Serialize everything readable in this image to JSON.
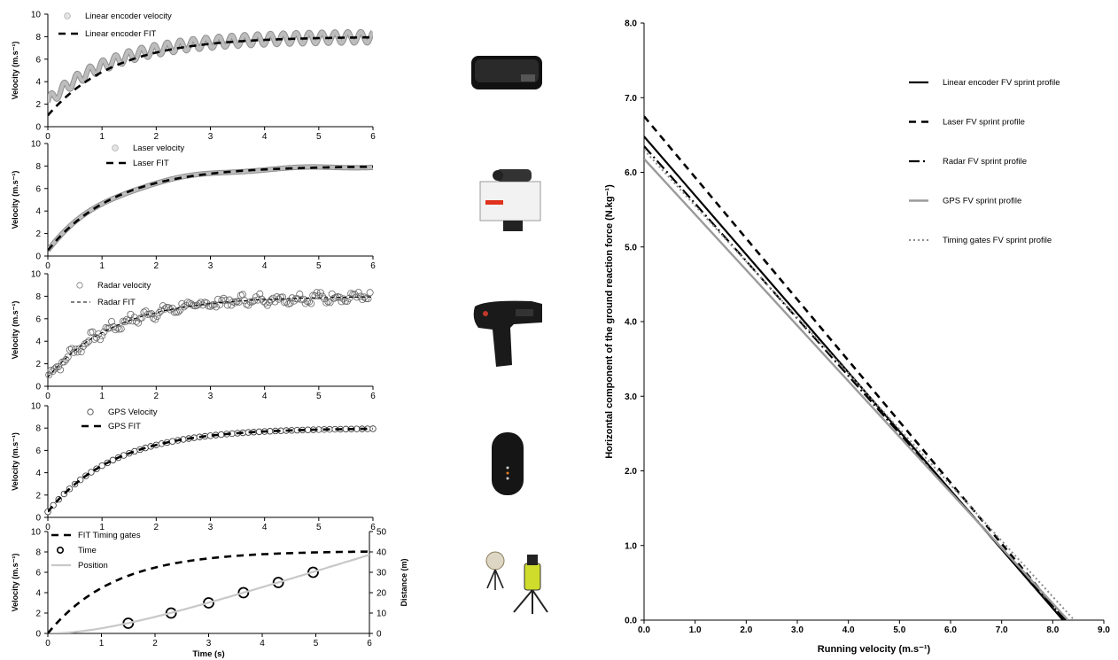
{
  "figure": {
    "width": 1262,
    "height": 745
  },
  "chart_data": [
    {
      "id": "encoder",
      "type": "line",
      "ylabel": "Velocity (m.s⁻¹)",
      "xlabel": "",
      "xlim": [
        0,
        6
      ],
      "ylim": [
        0,
        10
      ],
      "xticks": [
        0,
        1,
        2,
        3,
        4,
        5,
        6
      ],
      "yticks": [
        0,
        2,
        4,
        6,
        8,
        10
      ],
      "fit": {
        "vmax": 8.0,
        "tau": 1.25,
        "v0": 1.0
      },
      "series": [
        {
          "name": "Linear encoder velocity",
          "kind": "raw-oscillating",
          "style": "grey-band",
          "amplitude": 0.5,
          "cycles_per_s": 4.2
        },
        {
          "name": "Linear encoder FIT",
          "kind": "fit",
          "style": "dash-black"
        }
      ],
      "device_icon": "linear-encoder-device-icon"
    },
    {
      "id": "laser",
      "type": "line",
      "ylabel": "Velocity (m.s⁻¹)",
      "xlabel": "",
      "xlim": [
        0,
        6
      ],
      "ylim": [
        0,
        10
      ],
      "xticks": [
        0,
        1,
        2,
        3,
        4,
        5,
        6
      ],
      "yticks": [
        0,
        2,
        4,
        6,
        8,
        10
      ],
      "fit": {
        "vmax": 8.0,
        "tau": 1.25,
        "v0": 0.5
      },
      "series": [
        {
          "name": "Laser velocity",
          "kind": "raw-smooth",
          "style": "grey-band"
        },
        {
          "name": "Laser FIT",
          "kind": "fit",
          "style": "dash-black"
        }
      ],
      "device_icon": "laser-device-icon"
    },
    {
      "id": "radar",
      "type": "scatter",
      "ylabel": "Velocity (m.s⁻¹)",
      "xlabel": "",
      "xlim": [
        0,
        6
      ],
      "ylim": [
        0,
        10
      ],
      "xticks": [
        0,
        1,
        2,
        3,
        4,
        5,
        6
      ],
      "yticks": [
        0,
        2,
        4,
        6,
        8,
        10
      ],
      "fit": {
        "vmax": 8.0,
        "tau": 1.25,
        "v0": 0.8
      },
      "series": [
        {
          "name": "Radar velocity",
          "kind": "scatter-dense",
          "style": "open-circle-grey",
          "n_points": 170,
          "noise": 0.35
        },
        {
          "name": "Radar FIT",
          "kind": "fit",
          "style": "dash-thin"
        }
      ],
      "device_icon": "radar-device-icon"
    },
    {
      "id": "gps",
      "type": "scatter",
      "ylabel": "Velocity (m.s⁻¹)",
      "xlabel": "",
      "xlim": [
        0,
        6
      ],
      "ylim": [
        0,
        10
      ],
      "xticks": [
        0,
        1,
        2,
        3,
        4,
        5,
        6
      ],
      "yticks": [
        0,
        2,
        4,
        6,
        8,
        10
      ],
      "fit": {
        "vmax": 8.0,
        "tau": 1.25,
        "v0": 0.5
      },
      "series": [
        {
          "name": "GPS Velocity",
          "kind": "scatter-sampled",
          "style": "open-circle",
          "step": 0.1
        },
        {
          "name": "GPS FIT",
          "kind": "fit",
          "style": "dash-black"
        }
      ],
      "device_icon": "gps-device-icon"
    },
    {
      "id": "gates",
      "type": "line",
      "ylabel": "Velocity (m.s⁻¹)",
      "xlabel": "Time (s)",
      "y2label": "Distance (m)",
      "xlim": [
        0,
        6
      ],
      "ylim": [
        0,
        10
      ],
      "y2lim": [
        0,
        50
      ],
      "xticks": [
        0,
        1,
        2,
        3,
        4,
        5,
        6
      ],
      "yticks": [
        0,
        2,
        4,
        6,
        8,
        10
      ],
      "y2ticks": [
        0,
        10,
        20,
        30,
        40,
        50
      ],
      "fit": {
        "vmax": 8.1,
        "tau": 1.25,
        "v0": 0
      },
      "series": [
        {
          "name": "FIT Timing gates",
          "kind": "fit",
          "style": "dash-black"
        },
        {
          "name": "Time",
          "kind": "points",
          "style": "big-circle",
          "axis": "y2",
          "x": [
            1.5,
            2.3,
            3.0,
            3.65,
            4.3,
            4.95
          ],
          "y": [
            5,
            10,
            15,
            20,
            25,
            30
          ]
        },
        {
          "name": "Position",
          "kind": "position",
          "style": "grey-line",
          "axis": "y2"
        }
      ],
      "device_icon": "timing-gates-device-icon"
    },
    {
      "id": "fv",
      "type": "line",
      "xlabel": "Running velocity (m.s⁻¹)",
      "ylabel": "Horizontal component of the ground reaction force (N.kg⁻¹)",
      "xlim": [
        0,
        9
      ],
      "ylim": [
        0,
        8
      ],
      "xticks": [
        0,
        1,
        2,
        3,
        4,
        5,
        6,
        7,
        8,
        9
      ],
      "yticks": [
        0,
        1,
        2,
        3,
        4,
        5,
        6,
        7,
        8
      ],
      "tick_decimals": 1,
      "legend_position": "top-right",
      "series": [
        {
          "name": "Linear encoder FV sprint profile",
          "f0": 6.48,
          "v0": 8.2,
          "style": "solid-black"
        },
        {
          "name": "Laser FV sprint profile",
          "f0": 6.75,
          "v0": 8.25,
          "style": "dash-black"
        },
        {
          "name": "Radar FV sprint profile",
          "f0": 6.35,
          "v0": 8.25,
          "style": "longdash-black"
        },
        {
          "name": "GPS FV sprint profile",
          "f0": 6.18,
          "v0": 8.3,
          "style": "solid-grey"
        },
        {
          "name": "Timing gates FV sprint profile",
          "f0": 6.3,
          "v0": 8.42,
          "style": "dot-grey"
        }
      ]
    }
  ]
}
